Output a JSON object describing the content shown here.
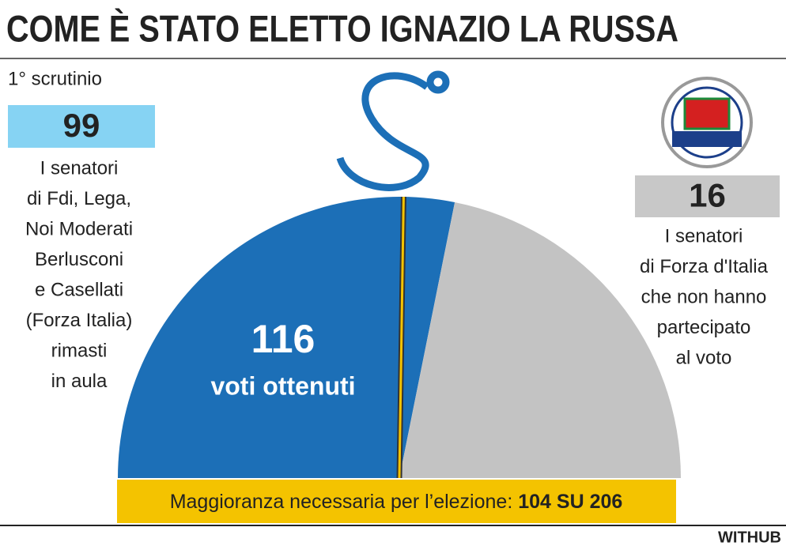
{
  "chart_data": {
    "type": "semicircle",
    "title": "COME È STATO ELETTO IGNAZIO LA RUSSA",
    "subtitle": "1° scrutinio",
    "categories": [
      "voti ottenuti",
      null
    ],
    "values": [
      116,
      90
    ],
    "colors": [
      "#1c6fb7",
      "#c3c3c3"
    ],
    "annotations": [
      {
        "value": 99,
        "color": "#86d3f3",
        "lines": [
          "I senatori",
          "di Fdi, Lega,",
          "Noi Moderati",
          "Berlusconi",
          "e Casellati",
          "(Forza Italia)",
          "rimasti",
          "in aula"
        ]
      },
      {
        "value": 16,
        "color": "#c8c8c8",
        "lines": [
          "I senatori",
          "di Forza d'Italia",
          "che non hanno",
          "partecipato",
          "al voto"
        ]
      }
    ],
    "majority": {
      "label": "Maggioranza necessaria per l’elezione:",
      "value": 104,
      "joiner": "SU",
      "total": 206,
      "color": "#f4c300"
    },
    "source": "WITHUB"
  }
}
